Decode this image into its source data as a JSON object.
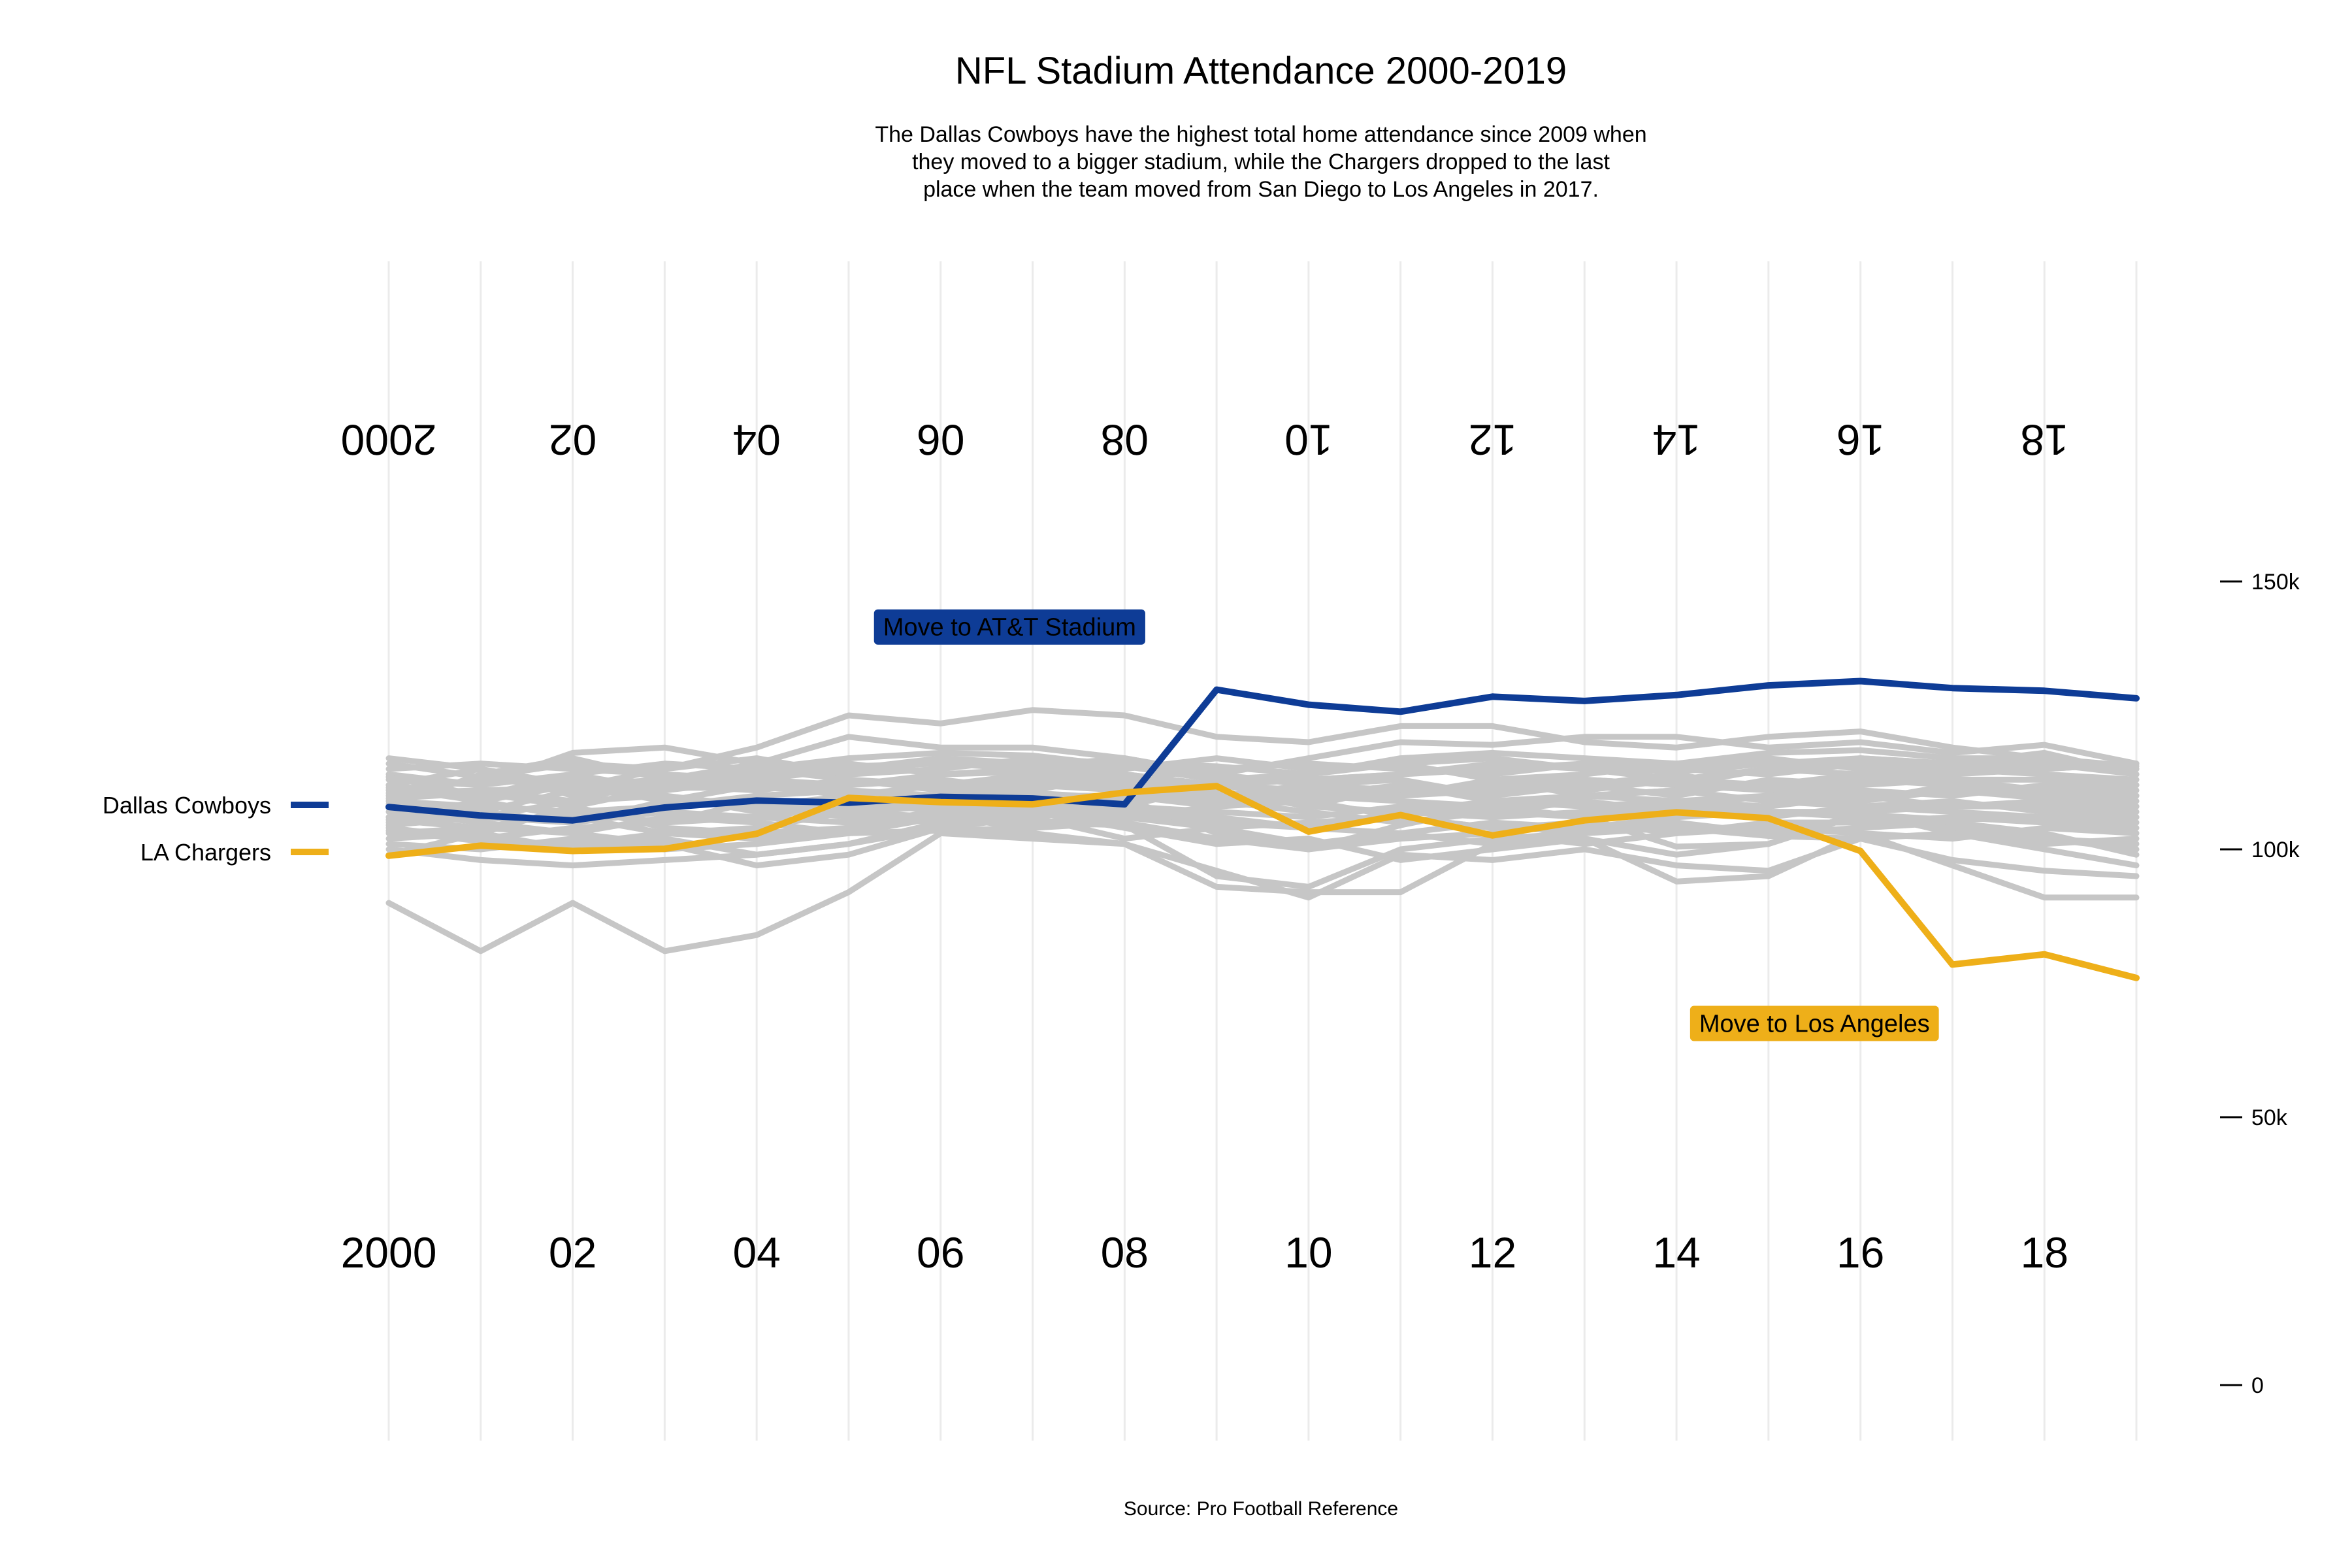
{
  "chart_data": {
    "type": "line",
    "title": "NFL Stadium Attendance 2000-2019",
    "subtitle": [
      "The Dallas Cowboys have the highest total home attendance since 2009 when",
      "they moved to a bigger stadium, while the Chargers dropped to the last",
      "place when the team moved from San Diego to Los Angeles in 2017."
    ],
    "caption": "Source: Pro Football Reference",
    "x": [
      2000,
      2001,
      2002,
      2003,
      2004,
      2005,
      2006,
      2007,
      2008,
      2009,
      2010,
      2011,
      2012,
      2013,
      2014,
      2015,
      2016,
      2017,
      2018,
      2019
    ],
    "x_tick_values": [
      2000,
      2002,
      2004,
      2006,
      2008,
      2010,
      2012,
      2014,
      2016,
      2018
    ],
    "x_tick_labels": [
      "2000",
      "02",
      "04",
      "06",
      "08",
      "10",
      "12",
      "14",
      "16",
      "18"
    ],
    "xlim": [
      2000,
      2019
    ],
    "ylim": [
      0,
      150000
    ],
    "y_ticks": [
      0,
      50000,
      100000,
      150000
    ],
    "y_tick_labels": [
      "0",
      "50k",
      "100k",
      "150k"
    ],
    "grid": "vertical",
    "legend_position": "left",
    "colors": {
      "highlight1": "#0e3c96",
      "highlight2": "#eeaf19",
      "background_lines": "#c6c6c6",
      "grid": "#ebebeb"
    },
    "highlight_series": [
      {
        "name": "Dallas Cowboys",
        "color": "#0e3c96",
        "values": [
          107900,
          106300,
          105400,
          107800,
          109100,
          108700,
          109800,
          109500,
          108400,
          129800,
          127000,
          125700,
          128500,
          127700,
          128800,
          130600,
          131400,
          130100,
          129600,
          128200
        ]
      },
      {
        "name": "LA Chargers",
        "color": "#eeaf19",
        "values": [
          98800,
          100700,
          99700,
          100100,
          102900,
          109600,
          108800,
          108400,
          110600,
          111800,
          103300,
          106400,
          102600,
          105400,
          106900,
          105800,
          99700,
          78500,
          80400,
          76000
        ]
      }
    ],
    "background_series": [
      {
        "values": [
          117000,
          115000,
          112000,
          113000,
          114000,
          115500,
          116000,
          115000,
          114000,
          112000,
          113000,
          114000,
          115000,
          116000,
          115000,
          116000,
          117000,
          116000,
          115000,
          116000
        ]
      },
      {
        "values": [
          114000,
          112000,
          118000,
          119000,
          116000,
          114000,
          116500,
          115500,
          117000,
          114000,
          112000,
          111000,
          112000,
          113000,
          112000,
          115000,
          114000,
          116000,
          118000,
          114000
        ]
      },
      {
        "values": [
          112000,
          110000,
          113000,
          112500,
          115000,
          117000,
          118000,
          117500,
          115500,
          113000,
          114000,
          116000,
          117000,
          115000,
          114500,
          116000,
          115500,
          114000,
          116000,
          115000
        ]
      },
      {
        "values": [
          110000,
          111000,
          111500,
          115000,
          119000,
          125000,
          123500,
          126000,
          125000,
          121000,
          120000,
          123000,
          123000,
          120000,
          119000,
          121000,
          122000,
          119000,
          117000,
          115500
        ]
      },
      {
        "values": [
          108000,
          114000,
          117000,
          113000,
          116000,
          121000,
          119000,
          119000,
          117000,
          114000,
          117000,
          120000,
          119500,
          121000,
          121000,
          119000,
          120000,
          118000,
          119500,
          116000
        ]
      },
      {
        "values": [
          106000,
          107000,
          105000,
          109000,
          112000,
          112000,
          114000,
          114500,
          113000,
          111000,
          108000,
          112000,
          111000,
          113000,
          112000,
          111000,
          110000,
          111000,
          109500,
          108000
        ]
      },
      {
        "values": [
          104000,
          102000,
          104000,
          105000,
          106000,
          108000,
          109000,
          109500,
          110000,
          109000,
          107000,
          105000,
          107000,
          106000,
          108000,
          110000,
          109000,
          112000,
          111000,
          110000
        ]
      },
      {
        "values": [
          102000,
          103000,
          108000,
          104000,
          103000,
          104000,
          106000,
          105000,
          104500,
          95000,
          93000,
          100000,
          102000,
          103000,
          104000,
          103000,
          104000,
          105000,
          103000,
          99000
        ]
      },
      {
        "values": [
          100000,
          98000,
          97000,
          98000,
          99000,
          101000,
          104000,
          103000,
          101000,
          96000,
          91000,
          99000,
          98000,
          100000,
          97000,
          96000,
          102000,
          98000,
          96000,
          95000
        ]
      },
      {
        "values": [
          90000,
          81000,
          90000,
          81000,
          84000,
          92000,
          103000,
          102000,
          101000,
          93000,
          92000,
          92000,
          101000,
          102000,
          94000,
          95000,
          103000,
          97000,
          91000,
          91000
        ]
      },
      {
        "values": [
          103000,
          104000,
          103000,
          101000,
          97000,
          99000,
          104000,
          106000,
          102000,
          104000,
          101000,
          103000,
          105000,
          104000,
          106000,
          107000,
          106000,
          104000,
          102000,
          100000
        ]
      },
      {
        "values": [
          105000,
          106000,
          109000,
          110000,
          108000,
          106000,
          105000,
          107000,
          106000,
          108000,
          110000,
          109000,
          108000,
          110000,
          111000,
          109000,
          108000,
          107000,
          106000,
          105000
        ]
      },
      {
        "values": [
          109000,
          108000,
          107000,
          108000,
          110000,
          111000,
          110000,
          112000,
          111000,
          110000,
          109000,
          111000,
          112000,
          111000,
          113000,
          112000,
          111000,
          110000,
          112000,
          111000
        ]
      },
      {
        "values": [
          111000,
          113000,
          112000,
          111000,
          113000,
          112000,
          113000,
          111000,
          114000,
          112000,
          111000,
          110000,
          111000,
          112000,
          110000,
          113000,
          112000,
          113000,
          111000,
          112000
        ]
      },
      {
        "values": [
          113000,
          112000,
          114000,
          116000,
          115000,
          113000,
          112000,
          114000,
          113000,
          115000,
          116000,
          115000,
          114000,
          116000,
          115000,
          114000,
          116000,
          115000,
          114000,
          113000
        ]
      },
      {
        "values": [
          115000,
          116000,
          115000,
          114000,
          113000,
          115000,
          117000,
          116000,
          115000,
          117000,
          115000,
          116000,
          113000,
          114000,
          116000,
          117000,
          115000,
          114000,
          115000,
          116000
        ]
      },
      {
        "values": [
          107000,
          105000,
          103000,
          106000,
          105000,
          103000,
          106000,
          104000,
          107000,
          105000,
          104000,
          103000,
          101000,
          104000,
          105000,
          103000,
          106000,
          104000,
          102000,
          101000
        ]
      },
      {
        "values": [
          101000,
          100000,
          102000,
          100000,
          101000,
          103000,
          103500,
          104000,
          105000,
          102000,
          100000,
          102000,
          103000,
          101000,
          103000,
          104000,
          103000,
          102000,
          104000,
          103000
        ]
      },
      {
        "values": [
          106000,
          109000,
          106000,
          103000,
          104000,
          107000,
          108000,
          106000,
          108000,
          107000,
          106000,
          108000,
          107000,
          109000,
          107000,
          106000,
          108000,
          109000,
          107000,
          106000
        ]
      },
      {
        "values": [
          112000,
          115000,
          110000,
          112000,
          111000,
          113000,
          111000,
          113000,
          112000,
          110000,
          112000,
          113000,
          110000,
          112000,
          114000,
          111000,
          113000,
          112000,
          110000,
          109000
        ]
      },
      {
        "values": [
          108500,
          107000,
          111000,
          110000,
          107000,
          109000,
          107000,
          108000,
          109000,
          111000,
          108000,
          107000,
          109000,
          108000,
          109000,
          108000,
          110000,
          108000,
          108000,
          107000
        ]
      },
      {
        "values": [
          104500,
          106000,
          105000,
          107000,
          106000,
          105000,
          107000,
          105000,
          106000,
          104000,
          105000,
          106000,
          104000,
          105000,
          103000,
          105000,
          105000,
          106000,
          105000,
          104000
        ]
      },
      {
        "values": [
          110500,
          111000,
          109000,
          113000,
          112000,
          110000,
          112000,
          110000,
          110000,
          109000,
          111000,
          110000,
          113000,
          110000,
          111000,
          112000,
          114000,
          113000,
          113000,
          112000
        ]
      },
      {
        "values": [
          113500,
          110000,
          114000,
          111000,
          114000,
          116000,
          114000,
          115000,
          116000,
          113000,
          113000,
          114000,
          116000,
          115000,
          113000,
          115000,
          117000,
          116000,
          116000,
          114000
        ]
      },
      {
        "values": [
          99000,
          103000,
          100000,
          102000,
          99000,
          101000,
          105000,
          107000,
          104000,
          101000,
          102000,
          98000,
          100000,
          102000,
          99000,
          101000,
          107000,
          103000,
          101000,
          102000
        ]
      },
      {
        "values": [
          105500,
          104000,
          107000,
          105000,
          109000,
          107000,
          106000,
          108000,
          107000,
          106000,
          104000,
          107000,
          106000,
          107000,
          108000,
          107000,
          107000,
          108000,
          109000,
          108000
        ]
      },
      {
        "values": [
          111500,
          109000,
          112000,
          109000,
          108000,
          110000,
          108000,
          109000,
          108000,
          112000,
          110000,
          112000,
          109000,
          110000,
          109000,
          110000,
          109000,
          111000,
          110000,
          110000
        ]
      },
      {
        "values": [
          116000,
          113500,
          116000,
          115000,
          117000,
          114000,
          115000,
          117000,
          116000,
          115500,
          114000,
          117000,
          118000,
          117000,
          116000,
          118000,
          118500,
          117000,
          117000,
          115000
        ]
      },
      {
        "values": [
          103500,
          101500,
          101000,
          103000,
          102000,
          104000,
          106500,
          108000,
          110000,
          108000,
          109000,
          106000,
          104000,
          103500,
          104000,
          102500,
          102000,
          103000,
          100000,
          97000
        ]
      },
      {
        "values": [
          109500,
          110500,
          108000,
          111500,
          111500,
          111000,
          109500,
          110500,
          109500,
          103000,
          100000,
          104500,
          108000,
          106000,
          100500,
          101000,
          106500,
          105500,
          106000,
          106000
        ]
      }
    ],
    "annotations": [
      {
        "label": "Move to AT&T Stadium",
        "x": 2006.75,
        "y": 141500,
        "fill": "#0e3c96"
      },
      {
        "label": "Move to Los Angeles",
        "x": 2015.5,
        "y": 67500,
        "fill": "#eeaf19"
      }
    ]
  }
}
